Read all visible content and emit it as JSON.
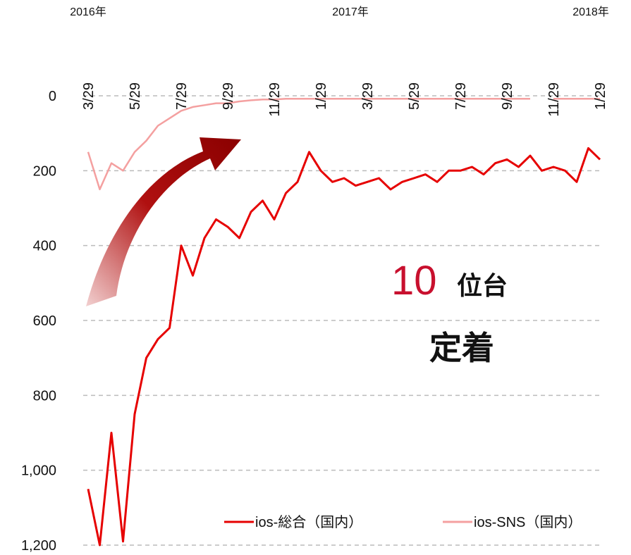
{
  "chart_data": {
    "type": "line",
    "year_labels": [
      "2016年",
      "2017年",
      "2018年"
    ],
    "categories": [
      "3/29",
      null,
      null,
      null,
      "5/29",
      null,
      null,
      null,
      "7/29",
      null,
      null,
      null,
      "9/29",
      null,
      null,
      null,
      "11/29",
      null,
      null,
      null,
      "1/29",
      null,
      null,
      null,
      "3/29",
      null,
      null,
      null,
      "5/29",
      null,
      null,
      null,
      "7/29",
      null,
      null,
      null,
      "9/29",
      null,
      null,
      null,
      "11/29",
      null,
      null,
      null,
      "1/29"
    ],
    "series": [
      {
        "name": "ios-総合（国内）",
        "color": "#e60000",
        "values": [
          1050,
          1200,
          900,
          1190,
          850,
          700,
          650,
          620,
          400,
          480,
          380,
          330,
          350,
          380,
          310,
          280,
          330,
          260,
          230,
          150,
          200,
          230,
          220,
          240,
          230,
          220,
          250,
          230,
          220,
          210,
          230,
          200,
          200,
          190,
          210,
          180,
          170,
          190,
          160,
          200,
          190,
          200,
          230,
          140,
          170
        ]
      },
      {
        "name": "ios-SNS（国内）",
        "color": "#f4a0a0",
        "values": [
          150,
          250,
          180,
          200,
          150,
          120,
          80,
          60,
          40,
          30,
          25,
          20,
          20,
          15,
          12,
          10,
          10,
          8,
          8,
          8,
          8,
          8,
          8,
          8,
          8,
          8,
          8,
          8,
          8,
          8,
          8,
          8,
          8,
          8,
          8,
          8,
          8,
          8,
          8,
          null,
          8,
          8,
          8,
          8,
          8
        ]
      }
    ],
    "ylim": [
      0,
      1200
    ],
    "inverted": true,
    "yticks": [
      0,
      200,
      400,
      600,
      800,
      {
        "value": 1000,
        "label": "1,000"
      },
      {
        "value": 1200,
        "label": "1,200"
      }
    ],
    "grid": true,
    "annotations": [
      "10",
      "位台",
      "定着"
    ]
  }
}
